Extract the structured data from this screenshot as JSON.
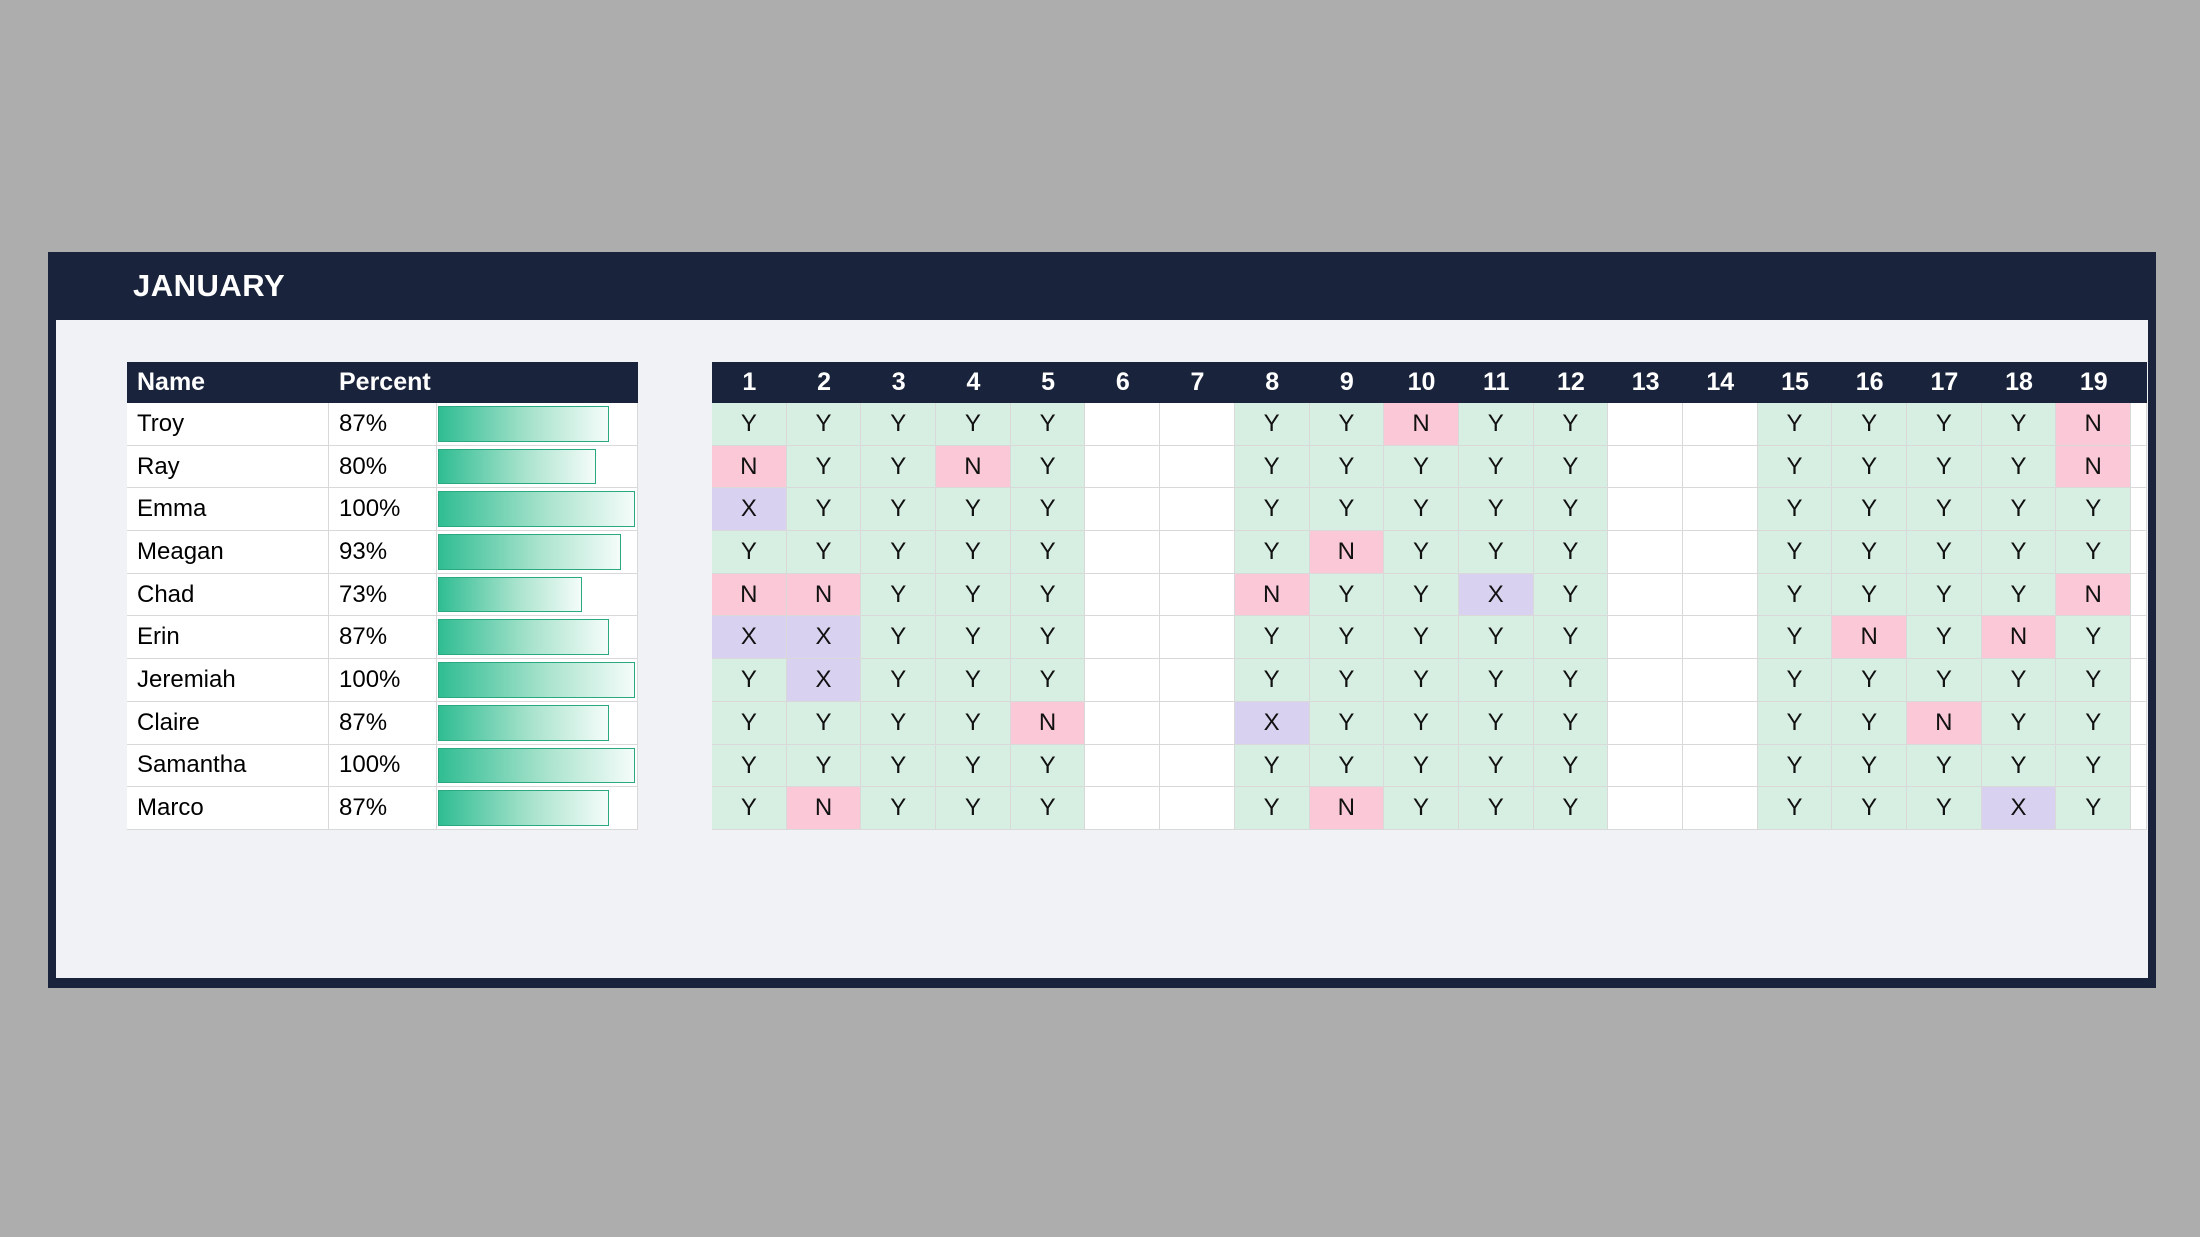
{
  "title": "JANUARY",
  "left_table": {
    "columns": [
      "Name",
      "Percent"
    ],
    "rows": [
      {
        "name": "Troy",
        "percent": "87%"
      },
      {
        "name": "Ray",
        "percent": "80%"
      },
      {
        "name": "Emma",
        "percent": "100%"
      },
      {
        "name": "Meagan",
        "percent": "93%"
      },
      {
        "name": "Chad",
        "percent": "73%"
      },
      {
        "name": "Erin",
        "percent": "87%"
      },
      {
        "name": "Jeremiah",
        "percent": "100%"
      },
      {
        "name": "Claire",
        "percent": "87%"
      },
      {
        "name": "Samantha",
        "percent": "100%"
      },
      {
        "name": "Marco",
        "percent": "87%"
      }
    ]
  },
  "grid": {
    "day_headers": [
      "1",
      "2",
      "3",
      "4",
      "5",
      "6",
      "7",
      "8",
      "9",
      "10",
      "11",
      "12",
      "13",
      "14",
      "15",
      "16",
      "17",
      "18",
      "19"
    ],
    "rows": [
      {
        "name": "Troy",
        "days": [
          "Y",
          "Y",
          "Y",
          "Y",
          "Y",
          "",
          "",
          "Y",
          "Y",
          "N",
          "Y",
          "Y",
          "",
          "",
          "Y",
          "Y",
          "Y",
          "Y",
          "N"
        ]
      },
      {
        "name": "Ray",
        "days": [
          "N",
          "Y",
          "Y",
          "N",
          "Y",
          "",
          "",
          "Y",
          "Y",
          "Y",
          "Y",
          "Y",
          "",
          "",
          "Y",
          "Y",
          "Y",
          "Y",
          "N"
        ]
      },
      {
        "name": "Emma",
        "days": [
          "X",
          "Y",
          "Y",
          "Y",
          "Y",
          "",
          "",
          "Y",
          "Y",
          "Y",
          "Y",
          "Y",
          "",
          "",
          "Y",
          "Y",
          "Y",
          "Y",
          "Y"
        ]
      },
      {
        "name": "Meagan",
        "days": [
          "Y",
          "Y",
          "Y",
          "Y",
          "Y",
          "",
          "",
          "Y",
          "N",
          "Y",
          "Y",
          "Y",
          "",
          "",
          "Y",
          "Y",
          "Y",
          "Y",
          "Y"
        ]
      },
      {
        "name": "Chad",
        "days": [
          "N",
          "N",
          "Y",
          "Y",
          "Y",
          "",
          "",
          "N",
          "Y",
          "Y",
          "X",
          "Y",
          "",
          "",
          "Y",
          "Y",
          "Y",
          "Y",
          "N"
        ]
      },
      {
        "name": "Erin",
        "days": [
          "X",
          "X",
          "Y",
          "Y",
          "Y",
          "",
          "",
          "Y",
          "Y",
          "Y",
          "Y",
          "Y",
          "",
          "",
          "Y",
          "N",
          "Y",
          "N",
          "Y"
        ]
      },
      {
        "name": "Jeremiah",
        "days": [
          "Y",
          "X",
          "Y",
          "Y",
          "Y",
          "",
          "",
          "Y",
          "Y",
          "Y",
          "Y",
          "Y",
          "",
          "",
          "Y",
          "Y",
          "Y",
          "Y",
          "Y"
        ]
      },
      {
        "name": "Claire",
        "days": [
          "Y",
          "Y",
          "Y",
          "Y",
          "N",
          "",
          "",
          "X",
          "Y",
          "Y",
          "Y",
          "Y",
          "",
          "",
          "Y",
          "Y",
          "N",
          "Y",
          "Y"
        ]
      },
      {
        "name": "Samantha",
        "days": [
          "Y",
          "Y",
          "Y",
          "Y",
          "Y",
          "",
          "",
          "Y",
          "Y",
          "Y",
          "Y",
          "Y",
          "",
          "",
          "Y",
          "Y",
          "Y",
          "Y",
          "Y"
        ]
      },
      {
        "name": "Marco",
        "days": [
          "Y",
          "N",
          "Y",
          "Y",
          "Y",
          "",
          "",
          "Y",
          "N",
          "Y",
          "Y",
          "Y",
          "",
          "",
          "Y",
          "Y",
          "Y",
          "X",
          "Y"
        ]
      }
    ]
  },
  "colors": {
    "page_bg": "#adadad",
    "navy": "#19233c",
    "content_bg": "#f1f2f5",
    "gridline": "#d9d9d9",
    "cell_present": "#d7eee3",
    "cell_absent": "#fac8d6",
    "cell_excused": "#d9d1f0",
    "bar_start": "#30bd92",
    "bar_end": "#f4fcf9",
    "bar_border": "#2aa981"
  }
}
